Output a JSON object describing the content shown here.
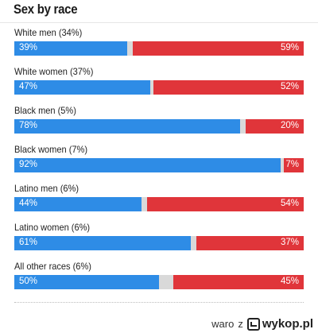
{
  "chart_data": {
    "type": "bar",
    "title": "Sex by race",
    "orientation": "horizontal-stacked",
    "categories": [
      "White men (34%)",
      "White women (37%)",
      "Black men (5%)",
      "Black women (7%)",
      "Latino men (6%)",
      "Latino women (6%)",
      "All other races (6%)"
    ],
    "series": [
      {
        "color": "#2e8ce6",
        "values": [
          39,
          47,
          78,
          92,
          44,
          61,
          50
        ]
      },
      {
        "color": "#e0353a",
        "values": [
          59,
          52,
          20,
          7,
          54,
          37,
          45
        ]
      }
    ],
    "value_labels": {
      "left": [
        "39%",
        "47%",
        "78%",
        "92%",
        "44%",
        "61%",
        "50%"
      ],
      "right": [
        "59%",
        "52%",
        "20%",
        "7%",
        "54%",
        "37%",
        "45%"
      ]
    },
    "xlim": [
      0,
      100
    ],
    "remainder_color": "#d9d9d9"
  },
  "watermark": {
    "user": "waro",
    "sep": "z",
    "site": "wykop.pl"
  }
}
